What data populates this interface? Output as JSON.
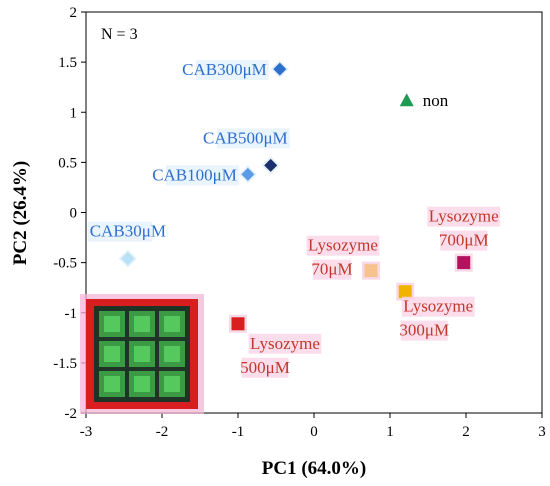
{
  "chart_data": {
    "type": "scatter",
    "xlabel": "PC1 (64.0%)",
    "ylabel": "PC2 (26.4%)",
    "xlim": [
      -3,
      3
    ],
    "ylim": [
      -2,
      2
    ],
    "x_ticks": [
      "-3",
      "-2",
      "-1",
      "0",
      "1",
      "2",
      "3"
    ],
    "y_ticks": [
      "2",
      "1.5",
      "1",
      "0.5",
      "0",
      "-0.5",
      "-1",
      "-1.5",
      "-2"
    ],
    "annotation": "N = 3",
    "grid": false,
    "points": [
      {
        "label": "CAB300μM",
        "x": -0.45,
        "y": 1.43,
        "marker": "diamond",
        "color": "#2e6fce",
        "label_color": "#2e6fce"
      },
      {
        "label": "CAB500μM",
        "x": -0.57,
        "y": 0.47,
        "marker": "diamond",
        "color": "#1a2f6b",
        "label_color": "#2e6fce"
      },
      {
        "label": "CAB100μM",
        "x": -0.87,
        "y": 0.38,
        "marker": "diamond",
        "color": "#5b9be6",
        "label_color": "#2e6fce"
      },
      {
        "label": "CAB30μM",
        "x": -2.45,
        "y": -0.46,
        "marker": "diamond",
        "color": "#b9e1f5",
        "label_color": "#2e6fce"
      },
      {
        "label": "non",
        "x": 1.22,
        "y": 1.12,
        "marker": "triangle",
        "color": "#1f9a52",
        "label_color": "#000000"
      },
      {
        "label": "Lysozyme 700μM",
        "x": 1.97,
        "y": -0.5,
        "marker": "square",
        "color": "#b3125e",
        "label_color": "#c0392b"
      },
      {
        "label": "Lysozyme 70μM",
        "x": 0.75,
        "y": -0.58,
        "marker": "square",
        "color": "#f6c38f",
        "label_color": "#c0392b"
      },
      {
        "label": "Lysozyme 300μM",
        "x": 1.2,
        "y": -0.79,
        "marker": "square",
        "color": "#f0b400",
        "label_color": "#c0392b"
      },
      {
        "label": "Lysozyme 500μM",
        "x": -1.0,
        "y": -1.11,
        "marker": "square",
        "color": "#d81e1e",
        "label_color": "#c0392b"
      }
    ]
  },
  "inset": {
    "description_icon": "sensor-array-image",
    "frame_color": "#d81e1e",
    "cell_color": "#3fae4a"
  }
}
